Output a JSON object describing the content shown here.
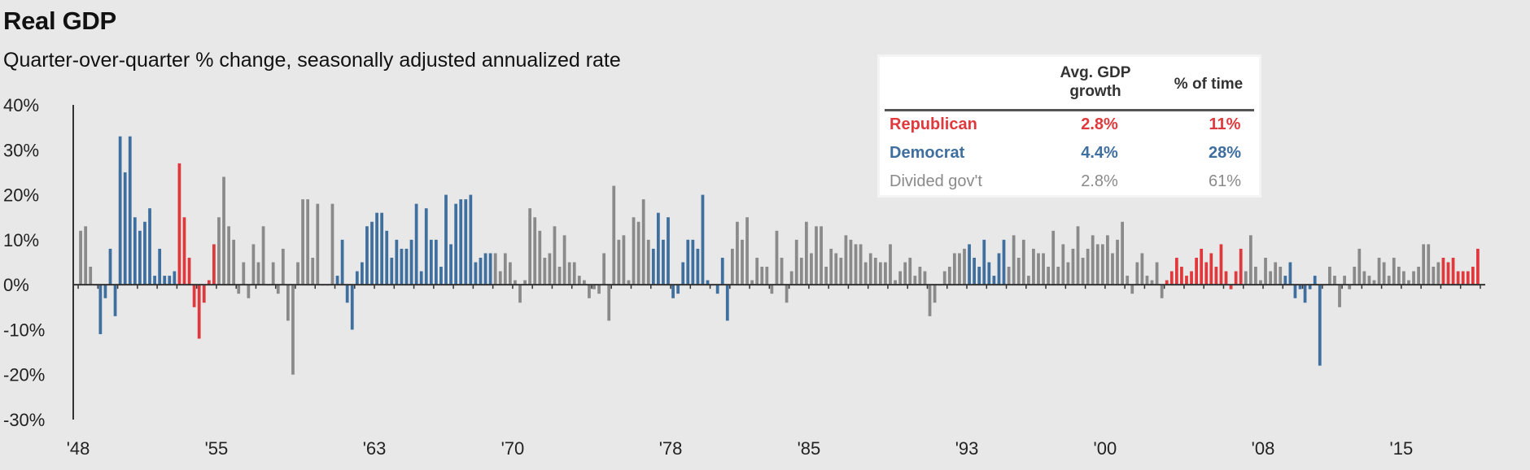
{
  "chart_data": {
    "type": "bar",
    "title": "Real GDP",
    "subtitle": "Quarter-over-quarter % change, seasonally adjusted annualized rate",
    "xlabel": "",
    "ylabel": "",
    "ylim": [
      -30,
      40
    ],
    "yticks": [
      "40%",
      "30%",
      "20%",
      "10%",
      "0%",
      "-10%",
      "-20%",
      "-30%"
    ],
    "ytick_values": [
      40,
      30,
      20,
      10,
      0,
      -10,
      -20,
      -30
    ],
    "xlim": [
      1947.75,
      2019.25
    ],
    "xticks": [
      "'48",
      "'55",
      "'63",
      "'70",
      "'78",
      "'85",
      "'93",
      "'00",
      "'08",
      "'15"
    ],
    "xtick_values": [
      1948,
      1955,
      1963,
      1970,
      1978,
      1985,
      1993,
      2000,
      2008,
      2015
    ],
    "colors": {
      "republican": "#e0393d",
      "democrat": "#3f6f9f",
      "divided": "#8a8a8a"
    },
    "period_colors": [
      {
        "start": 1948.0,
        "end": 1948.999,
        "party": "divided"
      },
      {
        "start": 1949.0,
        "end": 1952.999,
        "party": "democrat"
      },
      {
        "start": 1953.0,
        "end": 1954.999,
        "party": "republican"
      },
      {
        "start": 1955.0,
        "end": 1960.999,
        "party": "divided"
      },
      {
        "start": 1961.0,
        "end": 1968.999,
        "party": "democrat"
      },
      {
        "start": 1969.0,
        "end": 1976.999,
        "party": "divided"
      },
      {
        "start": 1977.0,
        "end": 1980.999,
        "party": "democrat"
      },
      {
        "start": 1981.0,
        "end": 1992.999,
        "party": "divided"
      },
      {
        "start": 1993.0,
        "end": 1994.999,
        "party": "democrat"
      },
      {
        "start": 1995.0,
        "end": 2002.999,
        "party": "divided"
      },
      {
        "start": 2003.0,
        "end": 2006.999,
        "party": "republican"
      },
      {
        "start": 2007.0,
        "end": 2008.999,
        "party": "divided"
      },
      {
        "start": 2009.0,
        "end": 2010.999,
        "party": "democrat"
      },
      {
        "start": 2011.0,
        "end": 2016.999,
        "party": "divided"
      },
      {
        "start": 2017.0,
        "end": 2018.999,
        "party": "republican"
      }
    ],
    "years": [
      1948,
      1949,
      1950,
      1951,
      1952,
      1953,
      1954,
      1955,
      1956,
      1957,
      1958,
      1959,
      1960,
      1961,
      1962,
      1963,
      1964,
      1965,
      1966,
      1967,
      1968,
      1969,
      1970,
      1971,
      1972,
      1973,
      1974,
      1975,
      1976,
      1977,
      1978,
      1979,
      1980,
      1981,
      1982,
      1983,
      1984,
      1985,
      1986,
      1987,
      1988,
      1989,
      1990,
      1991,
      1992,
      1993,
      1994,
      1995,
      1996,
      1997,
      1998,
      1999,
      2000,
      2001,
      2002,
      2003,
      2004,
      2005,
      2006,
      2007,
      2008,
      2009,
      2010,
      2011,
      2012,
      2013,
      2014,
      2015,
      2016,
      2017,
      2018
    ],
    "quarterly_values": [
      [
        12,
        13,
        4,
        0
      ],
      [
        -11,
        -3,
        8,
        -7
      ],
      [
        33,
        25,
        33,
        15
      ],
      [
        12,
        14,
        17,
        2
      ],
      [
        8,
        2,
        2,
        3
      ],
      [
        27,
        15,
        6,
        -5
      ],
      [
        -12,
        -4,
        1,
        9
      ],
      [
        15,
        24,
        13,
        10
      ],
      [
        -2,
        5,
        -3,
        9
      ],
      [
        5,
        13,
        0,
        5
      ],
      [
        -2,
        8,
        -8,
        -20
      ],
      [
        5,
        19,
        19,
        6
      ],
      [
        18,
        0,
        0,
        18
      ],
      [
        2,
        10,
        -4,
        -10
      ],
      [
        3,
        5,
        13,
        14
      ],
      [
        16,
        16,
        12,
        6
      ],
      [
        10,
        8,
        8,
        10
      ],
      [
        18,
        3,
        17,
        10
      ],
      [
        10,
        4,
        20,
        9
      ],
      [
        18,
        19,
        19,
        20
      ],
      [
        5,
        6,
        7,
        7
      ],
      [
        7,
        3,
        7,
        5
      ],
      [
        1,
        -4,
        1,
        17
      ],
      [
        15,
        12,
        6,
        7
      ],
      [
        13,
        4,
        11,
        5
      ],
      [
        5,
        2,
        1,
        -3
      ],
      [
        -1,
        -2,
        7,
        -8
      ],
      [
        22,
        10,
        11,
        1
      ],
      [
        15,
        14,
        19,
        10
      ],
      [
        8,
        16,
        10,
        15
      ],
      [
        -3,
        -2,
        5,
        10
      ],
      [
        10,
        8,
        20,
        1
      ],
      [
        0,
        -2,
        6,
        -8
      ],
      [
        8,
        14,
        10,
        15
      ],
      [
        1,
        6,
        4,
        4
      ],
      [
        -2,
        12,
        6,
        -4
      ],
      [
        3,
        10,
        6,
        14
      ],
      [
        7,
        13,
        13,
        4
      ],
      [
        8,
        7,
        6,
        11
      ],
      [
        10,
        9,
        9,
        5
      ],
      [
        7,
        6,
        5,
        5
      ],
      [
        9,
        1,
        3,
        5
      ],
      [
        6,
        2,
        4,
        3
      ],
      [
        -7,
        -4,
        0,
        3
      ],
      [
        4,
        7,
        7,
        8
      ],
      [
        9,
        6,
        4,
        10
      ],
      [
        5,
        2,
        7,
        10
      ],
      [
        4,
        11,
        6,
        10
      ],
      [
        2,
        8,
        7,
        7
      ],
      [
        4,
        12,
        4,
        9
      ],
      [
        5,
        8,
        13,
        6
      ],
      [
        8,
        11,
        9,
        9
      ],
      [
        11,
        7,
        10,
        14
      ],
      [
        2,
        -2,
        5,
        7
      ],
      [
        2,
        1,
        5,
        -3
      ],
      [
        1,
        3,
        6,
        4
      ],
      [
        2,
        3,
        6,
        8
      ],
      [
        5,
        7,
        4,
        9
      ],
      [
        3,
        -1,
        3,
        8
      ],
      [
        3,
        11,
        4,
        1
      ],
      [
        6,
        3,
        5,
        4
      ],
      [
        2,
        5,
        -3,
        -1
      ],
      [
        -4,
        -1,
        2,
        -18
      ],
      [
        0,
        4,
        2,
        -5
      ],
      [
        2,
        -1,
        4,
        8
      ],
      [
        3,
        2,
        1,
        6
      ],
      [
        5,
        2,
        6,
        4
      ],
      [
        3,
        1,
        3,
        4
      ],
      [
        9,
        9,
        4,
        5
      ],
      [
        6,
        5,
        6,
        3
      ],
      [
        3,
        3,
        4,
        8
      ]
    ],
    "legend_table": {
      "headers": [
        "",
        "Avg. GDP growth",
        "% of time"
      ],
      "rows": [
        {
          "party": "republican",
          "name": "Republican",
          "avg": "2.8%",
          "pct": "11%"
        },
        {
          "party": "democrat",
          "name": "Democrat",
          "avg": "4.4%",
          "pct": "28%"
        },
        {
          "party": "divided",
          "name": "Divided gov't",
          "avg": "2.8%",
          "pct": "61%"
        }
      ]
    }
  },
  "legend": {
    "header_avg_line1": "Avg. GDP",
    "header_avg_line2": "growth",
    "header_pct": "% of time",
    "rows": [
      {
        "name": "Republican",
        "avg": "2.8%",
        "pct": "11%",
        "color": "#e0393d"
      },
      {
        "name": "Democrat",
        "avg": "4.4%",
        "pct": "28%",
        "color": "#3f6f9f"
      },
      {
        "name": "Divided gov't",
        "avg": "2.8%",
        "pct": "61%",
        "color": "#8a8a8a"
      }
    ]
  }
}
